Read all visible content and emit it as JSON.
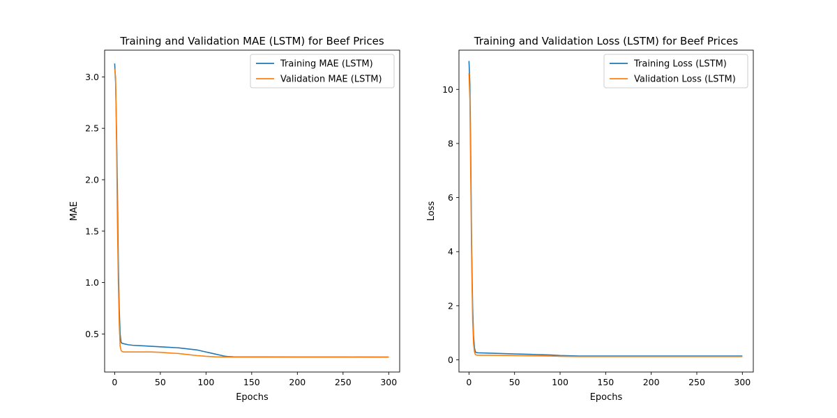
{
  "chart_data": [
    {
      "type": "line",
      "title": "Training and Validation MAE (LSTM) for Beef Prices",
      "xlabel": "Epochs",
      "ylabel": "MAE",
      "xlim": [
        -11,
        312
      ],
      "ylim": [
        0.13,
        3.26
      ],
      "xticks": [
        0,
        50,
        100,
        150,
        200,
        250,
        300
      ],
      "yticks": [
        0.5,
        1.0,
        1.5,
        2.0,
        2.5,
        3.0
      ],
      "ytick_labels": [
        "0.5",
        "1.0",
        "1.5",
        "2.0",
        "2.5",
        "3.0"
      ],
      "grid": false,
      "legend_position": "upper right",
      "series": [
        {
          "name": "Training MAE (LSTM)",
          "color": "#1f77b4",
          "x": [
            0,
            1,
            2,
            3,
            4,
            5,
            6,
            7,
            8,
            10,
            15,
            20,
            30,
            40,
            50,
            60,
            70,
            80,
            90,
            100,
            105,
            110,
            115,
            120,
            125,
            130,
            150,
            200,
            250,
            300
          ],
          "y": [
            3.13,
            2.95,
            2.5,
            1.9,
            1.2,
            0.75,
            0.5,
            0.42,
            0.41,
            0.405,
            0.395,
            0.39,
            0.385,
            0.38,
            0.375,
            0.37,
            0.365,
            0.355,
            0.345,
            0.325,
            0.315,
            0.305,
            0.295,
            0.285,
            0.28,
            0.278,
            0.277,
            0.276,
            0.276,
            0.275
          ]
        },
        {
          "name": "Validation MAE (LSTM)",
          "color": "#ff7f0e",
          "x": [
            0,
            1,
            2,
            3,
            4,
            5,
            6,
            7,
            8,
            10,
            20,
            30,
            40,
            50,
            60,
            70,
            80,
            90,
            100,
            110,
            120,
            130,
            150,
            200,
            250,
            300
          ],
          "y": [
            3.08,
            3.0,
            2.4,
            1.6,
            1.0,
            0.6,
            0.38,
            0.34,
            0.33,
            0.325,
            0.325,
            0.325,
            0.325,
            0.322,
            0.315,
            0.31,
            0.3,
            0.29,
            0.283,
            0.278,
            0.276,
            0.275,
            0.275,
            0.275,
            0.275,
            0.275
          ]
        }
      ]
    },
    {
      "type": "line",
      "title": "Training and Validation Loss (LSTM) for Beef Prices",
      "xlabel": "Epochs",
      "ylabel": "Loss",
      "xlim": [
        -11,
        312
      ],
      "ylim": [
        -0.45,
        11.45
      ],
      "xticks": [
        0,
        50,
        100,
        150,
        200,
        250,
        300
      ],
      "yticks": [
        0,
        2,
        4,
        6,
        8,
        10
      ],
      "ytick_labels": [
        "0",
        "2",
        "4",
        "6",
        "8",
        "10"
      ],
      "grid": false,
      "legend_position": "upper right",
      "series": [
        {
          "name": "Training Loss (LSTM)",
          "color": "#1f77b4",
          "x": [
            0,
            1,
            2,
            3,
            4,
            5,
            6,
            7,
            8,
            10,
            20,
            50,
            70,
            90,
            100,
            120,
            150,
            200,
            250,
            300
          ],
          "y": [
            11.05,
            10.2,
            7.4,
            4.0,
            2.0,
            0.9,
            0.45,
            0.3,
            0.27,
            0.26,
            0.25,
            0.22,
            0.2,
            0.18,
            0.16,
            0.14,
            0.14,
            0.14,
            0.14,
            0.14
          ]
        },
        {
          "name": "Validation Loss (LSTM)",
          "color": "#ff7f0e",
          "x": [
            0,
            1,
            2,
            3,
            4,
            5,
            6,
            7,
            8,
            10,
            20,
            50,
            70,
            90,
            100,
            120,
            150,
            200,
            250,
            300
          ],
          "y": [
            10.6,
            9.6,
            6.5,
            3.5,
            1.5,
            0.6,
            0.3,
            0.2,
            0.18,
            0.17,
            0.17,
            0.16,
            0.15,
            0.14,
            0.13,
            0.12,
            0.12,
            0.12,
            0.12,
            0.12
          ]
        }
      ]
    }
  ]
}
